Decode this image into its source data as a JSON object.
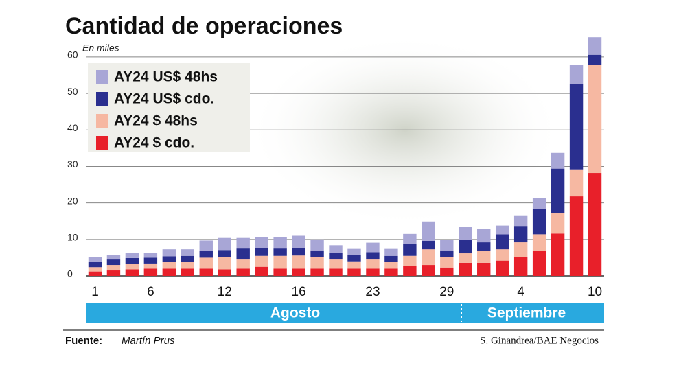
{
  "chart_data": {
    "type": "stacked-bar",
    "title": "Cantidad de operaciones",
    "subtitle": "En miles",
    "categories": [
      "1",
      null,
      null,
      "6",
      null,
      null,
      null,
      "12",
      null,
      null,
      null,
      "16",
      null,
      null,
      null,
      "23",
      null,
      null,
      null,
      "29",
      null,
      null,
      null,
      "4",
      null,
      null,
      null,
      "10"
    ],
    "months": [
      "Agosto",
      "Septiembre"
    ],
    "series": [
      {
        "name": "AY24 $ cdo.",
        "color": "#e8202a",
        "values": [
          1.2,
          1.5,
          1.8,
          2,
          2,
          2,
          2,
          1.8,
          2,
          2.5,
          2,
          2,
          2,
          2,
          2,
          2,
          2,
          2.8,
          3,
          2.3,
          3.6,
          3.6,
          4.2,
          5.2,
          6.8,
          11.6,
          21.8,
          28.2
        ]
      },
      {
        "name": "AY24 $ 48hs",
        "color": "#f6b8a2",
        "values": [
          1.2,
          1.5,
          1.5,
          1.4,
          1.8,
          1.8,
          3,
          3.3,
          2.5,
          3,
          3.5,
          3.6,
          3.2,
          2.5,
          2,
          2.5,
          1.8,
          2.7,
          4.3,
          2.9,
          2.6,
          3.2,
          3.1,
          4,
          4.6,
          5.6,
          7.4,
          29.6
        ]
      },
      {
        "name": "AY24 US$ cdo.",
        "color": "#2a2f8f",
        "values": [
          1.5,
          1.5,
          1.6,
          1.6,
          1.6,
          1.7,
          1.8,
          2,
          3,
          2.2,
          2,
          2,
          1.8,
          1.8,
          1.7,
          2,
          1.7,
          3.2,
          2.3,
          1.8,
          3.7,
          2.4,
          4.1,
          4.5,
          6.9,
          12.2,
          23.3,
          2.8
        ]
      },
      {
        "name": "AY24 US$ 48hs",
        "color": "#a8a6d6",
        "values": [
          1.3,
          1.3,
          1.4,
          1.3,
          1.9,
          1.8,
          2.9,
          3.3,
          2.9,
          2.9,
          3.1,
          3.4,
          3,
          2.1,
          1.7,
          2.6,
          1.9,
          2.8,
          5.3,
          2.9,
          3.5,
          3.6,
          2.4,
          2.9,
          3.1,
          4.3,
          5.4,
          4.8
        ]
      }
    ],
    "ylim": [
      0,
      66
    ],
    "yticks": [
      0,
      10,
      20,
      30,
      40,
      50,
      60
    ],
    "grid": true,
    "source_label": "Fuente:",
    "source": "Martín Prus",
    "credit": "S. Ginandrea/BAE Negocios"
  }
}
